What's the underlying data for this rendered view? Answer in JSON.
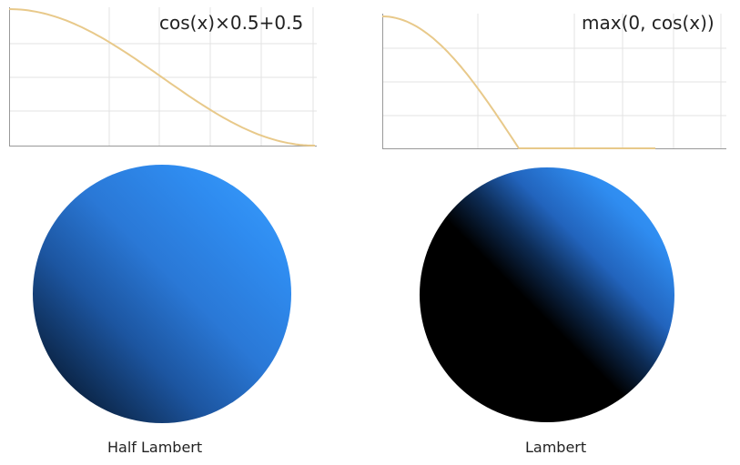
{
  "left": {
    "formula": "cos(x)×0.5+0.5",
    "caption": "Half Lambert",
    "sphere_colors": {
      "dark": "#000000",
      "mid": "#1a4d99",
      "light": "#3aa0ff"
    },
    "curve": {
      "type": "half-lambert",
      "x": [
        0,
        3.1416
      ]
    }
  },
  "right": {
    "formula": "max(0, cos(x))",
    "caption": "Lambert",
    "sphere_colors": {
      "dark": "#000000",
      "mid": "#1a4d99",
      "light": "#3aa0ff"
    },
    "curve": {
      "type": "lambert",
      "x": [
        0,
        3.1416
      ]
    }
  },
  "colors": {
    "curve": "#e8c98a",
    "grid": "#e3e3e3",
    "axis": "#999999"
  }
}
